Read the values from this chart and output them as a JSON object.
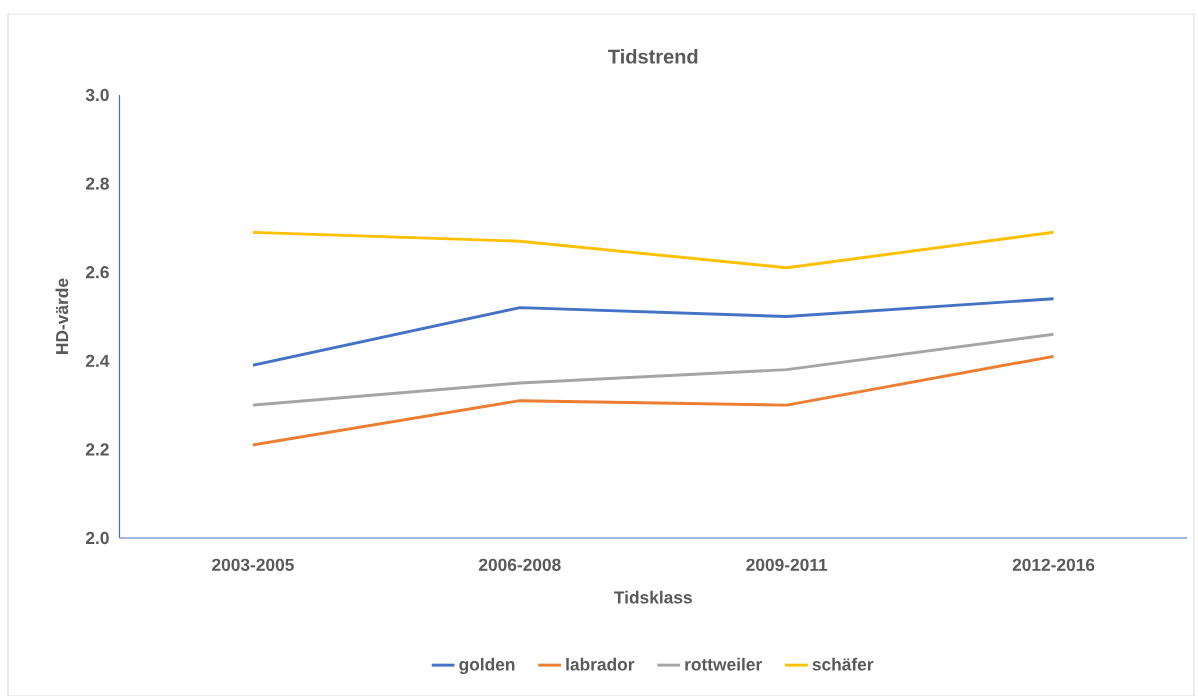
{
  "chart_data": {
    "type": "line",
    "title": "Tidstrend",
    "xlabel": "Tidsklass",
    "ylabel": "HD-värde",
    "categories": [
      "2003-2005",
      "2006-2008",
      "2009-2011",
      "2012-2016"
    ],
    "series": [
      {
        "name": "golden",
        "color": "#4472c4",
        "values": [
          2.39,
          2.52,
          2.5,
          2.54
        ]
      },
      {
        "name": "labrador",
        "color": "#ed7d31",
        "values": [
          2.21,
          2.31,
          2.3,
          2.41
        ]
      },
      {
        "name": "rottweiler",
        "color": "#a5a5a5",
        "values": [
          2.3,
          2.35,
          2.38,
          2.46
        ]
      },
      {
        "name": "schäfer",
        "color": "#ffc000",
        "values": [
          2.69,
          2.67,
          2.61,
          2.69
        ]
      }
    ],
    "ylim": [
      2.0,
      3.0
    ],
    "yticks": [
      {
        "value": 2.0,
        "label": "2.0"
      },
      2.2,
      2.4,
      2.6,
      2.8,
      {
        "value": 3.0,
        "label": "3.0"
      }
    ],
    "legend": "bottom"
  }
}
